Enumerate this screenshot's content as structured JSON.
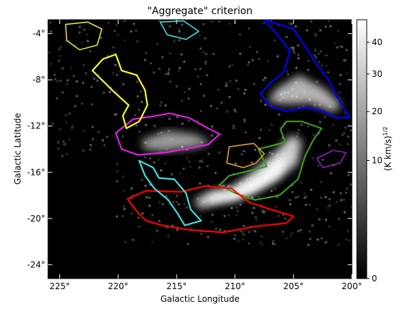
{
  "chart_data": {
    "type": "heatmap",
    "title": "\"Aggregate\" criterion",
    "xlabel": "Galactic Longitude",
    "ylabel": "Galactic Latitude",
    "x_range": [
      226,
      200
    ],
    "y_range": [
      -25.2,
      -2.8
    ],
    "x_ticks": [
      {
        "value": 225,
        "label": "225°"
      },
      {
        "value": 220,
        "label": "220°"
      },
      {
        "value": 215,
        "label": "215°"
      },
      {
        "value": 210,
        "label": "210°"
      },
      {
        "value": 205,
        "label": "205°"
      },
      {
        "value": 200,
        "label": "200°"
      }
    ],
    "y_ticks": [
      {
        "value": -4,
        "label": "-4°"
      },
      {
        "value": -8,
        "label": "-8°"
      },
      {
        "value": -12,
        "label": "-12°"
      },
      {
        "value": -16,
        "label": "-16°"
      },
      {
        "value": -20,
        "label": "-20°"
      },
      {
        "value": -24,
        "label": "-24°"
      }
    ],
    "colorbar": {
      "label": "(K km/s)",
      "label_exponent": "1/2",
      "scale": "sqrt",
      "range": [
        0,
        48
      ],
      "ticks": [
        {
          "value": 0,
          "label": "0"
        },
        {
          "value": 10,
          "label": "10"
        },
        {
          "value": 20,
          "label": "20"
        },
        {
          "value": 30,
          "label": "30"
        },
        {
          "value": 40,
          "label": "40"
        }
      ]
    },
    "emission_regions": [
      {
        "name": "ridge",
        "color": "#ffffff",
        "intensity": 0.8,
        "points": [
          [
            213,
            -19.2
          ],
          [
            211,
            -18.2
          ],
          [
            208.5,
            -17.8
          ],
          [
            206.5,
            -16.8
          ],
          [
            204.6,
            -15.2
          ],
          [
            204.3,
            -13.2
          ],
          [
            205.2,
            -12.8
          ],
          [
            206.8,
            -14.5
          ],
          [
            208.8,
            -16.2
          ],
          [
            210.5,
            -17.5
          ],
          [
            212,
            -17.6
          ],
          [
            213.5,
            -18.4
          ]
        ]
      },
      {
        "name": "ridge-core",
        "color": "#ffffff",
        "intensity": 1.0,
        "points": [
          [
            212.5,
            -18.8
          ],
          [
            210,
            -18.5
          ],
          [
            208.3,
            -17.6
          ],
          [
            206.2,
            -16.2
          ],
          [
            205.4,
            -14.6
          ],
          [
            206.2,
            -14.8
          ],
          [
            208,
            -16.4
          ],
          [
            210,
            -17.5
          ],
          [
            212,
            -18
          ]
        ]
      },
      {
        "name": "upper-right-streak",
        "color": "#ffffff",
        "intensity": 0.7,
        "points": [
          [
            206.5,
            -8.8
          ],
          [
            204.5,
            -7.6
          ],
          [
            202.3,
            -8.8
          ],
          [
            200.9,
            -10.2
          ],
          [
            201.6,
            -10.8
          ],
          [
            203.5,
            -10
          ],
          [
            205.5,
            -10.1
          ],
          [
            207.2,
            -9.9
          ]
        ]
      },
      {
        "name": "central-cloud",
        "color": "#ffffff",
        "intensity": 0.6,
        "points": [
          [
            218,
            -13.2
          ],
          [
            215.8,
            -12.4
          ],
          [
            213.4,
            -12.7
          ],
          [
            212,
            -13.5
          ],
          [
            213.6,
            -13.9
          ],
          [
            216.2,
            -14.2
          ],
          [
            217.8,
            -14
          ]
        ]
      }
    ],
    "contours": [
      {
        "name": "blue",
        "color": "#0000ff",
        "points": [
          [
            207.5,
            -2.8
          ],
          [
            205,
            -3.6
          ],
          [
            203.8,
            -5.4
          ],
          [
            202.9,
            -6.8
          ],
          [
            202,
            -8
          ],
          [
            201.2,
            -9.6
          ],
          [
            200.2,
            -11.2
          ],
          [
            201.3,
            -11.3
          ],
          [
            202.5,
            -10.7
          ],
          [
            204,
            -10.4
          ],
          [
            205.6,
            -10.7
          ],
          [
            207,
            -10.3
          ],
          [
            207.8,
            -9.2
          ],
          [
            207,
            -8.3
          ],
          [
            205.8,
            -7.3
          ],
          [
            205.3,
            -5.5
          ],
          [
            206.3,
            -4.2
          ]
        ]
      },
      {
        "name": "green",
        "color": "#3a9a1e",
        "points": [
          [
            208,
            -14
          ],
          [
            207.3,
            -15.5
          ],
          [
            210.5,
            -16.3
          ],
          [
            211.3,
            -17.1
          ],
          [
            210,
            -17.8
          ],
          [
            208.3,
            -18.4
          ],
          [
            206.2,
            -18
          ],
          [
            204.6,
            -16.6
          ],
          [
            204,
            -14.6
          ],
          [
            203.3,
            -13.2
          ],
          [
            202.6,
            -12.2
          ],
          [
            204.3,
            -11.6
          ],
          [
            205.6,
            -11.6
          ],
          [
            206.1,
            -12.3
          ],
          [
            205.7,
            -13.4
          ]
        ]
      },
      {
        "name": "red",
        "color": "#ff0000",
        "points": [
          [
            219.2,
            -18.3
          ],
          [
            217.6,
            -17.6
          ],
          [
            214.6,
            -17.7
          ],
          [
            212.6,
            -17.2
          ],
          [
            210.3,
            -17.4
          ],
          [
            208.8,
            -18.6
          ],
          [
            207,
            -19.2
          ],
          [
            205,
            -19.8
          ],
          [
            205.6,
            -20.4
          ],
          [
            208.3,
            -20.7
          ],
          [
            211,
            -21.2
          ],
          [
            213.8,
            -21
          ],
          [
            216.2,
            -20.6
          ],
          [
            217.6,
            -20.2
          ],
          [
            218.4,
            -19.4
          ]
        ]
      },
      {
        "name": "magenta",
        "color": "#e020e0",
        "points": [
          [
            220.2,
            -12.6
          ],
          [
            218.7,
            -11.4
          ],
          [
            217.2,
            -11.2
          ],
          [
            215.6,
            -10.9
          ],
          [
            213.9,
            -11.3
          ],
          [
            212.3,
            -12.2
          ],
          [
            211.3,
            -12.7
          ],
          [
            212.3,
            -13.6
          ],
          [
            213.8,
            -13.9
          ],
          [
            216,
            -14.3
          ],
          [
            218.3,
            -14.5
          ],
          [
            219.7,
            -14
          ]
        ]
      },
      {
        "name": "cyan",
        "color": "#40e0e0",
        "points": [
          [
            218.2,
            -15
          ],
          [
            217,
            -15.6
          ],
          [
            216.5,
            -16.5
          ],
          [
            215.2,
            -16.6
          ],
          [
            214.2,
            -17.8
          ],
          [
            213.8,
            -19.2
          ],
          [
            212.9,
            -20.2
          ],
          [
            214.3,
            -20.6
          ],
          [
            214.9,
            -19.6
          ],
          [
            215.7,
            -18.4
          ],
          [
            216.9,
            -17.4
          ],
          [
            217.7,
            -16.3
          ]
        ]
      },
      {
        "name": "yellow",
        "color": "#ffff20",
        "points": [
          [
            222.2,
            -7.2
          ],
          [
            221.3,
            -6.2
          ],
          [
            220.2,
            -5.8
          ],
          [
            219.7,
            -7.2
          ],
          [
            218.4,
            -7.6
          ],
          [
            217.7,
            -8.9
          ],
          [
            217.5,
            -10.2
          ],
          [
            218.2,
            -11.6
          ],
          [
            219.3,
            -12.2
          ],
          [
            219.6,
            -11.1
          ],
          [
            219.1,
            -10.2
          ],
          [
            220.4,
            -9
          ],
          [
            221.3,
            -8.1
          ]
        ]
      },
      {
        "name": "orange",
        "color": "#e0a030",
        "points": [
          [
            210.5,
            -13.8
          ],
          [
            208.4,
            -13.5
          ],
          [
            207.5,
            -14.4
          ],
          [
            208.2,
            -15.2
          ],
          [
            209.3,
            -15.6
          ],
          [
            210.7,
            -15.2
          ]
        ]
      },
      {
        "name": "purple",
        "color": "#9020c0",
        "points": [
          [
            203,
            -14.8
          ],
          [
            201.6,
            -14.1
          ],
          [
            200.5,
            -14.3
          ],
          [
            201,
            -15.2
          ],
          [
            202.5,
            -15.6
          ]
        ]
      },
      {
        "name": "yellow-upper-left",
        "color": "#e8e040",
        "points": [
          [
            224.5,
            -3.2
          ],
          [
            222.6,
            -3
          ],
          [
            221.4,
            -3.6
          ],
          [
            221.8,
            -5
          ],
          [
            223.3,
            -5.4
          ],
          [
            224.4,
            -4.6
          ]
        ]
      },
      {
        "name": "cyan-upper",
        "color": "#40e0e0",
        "points": [
          [
            216.4,
            -3
          ],
          [
            214.4,
            -2.9
          ],
          [
            213.1,
            -3.8
          ],
          [
            214.2,
            -4.5
          ],
          [
            215.8,
            -4.1
          ]
        ]
      }
    ],
    "grid": false,
    "legend": "none",
    "background": "#000000"
  }
}
